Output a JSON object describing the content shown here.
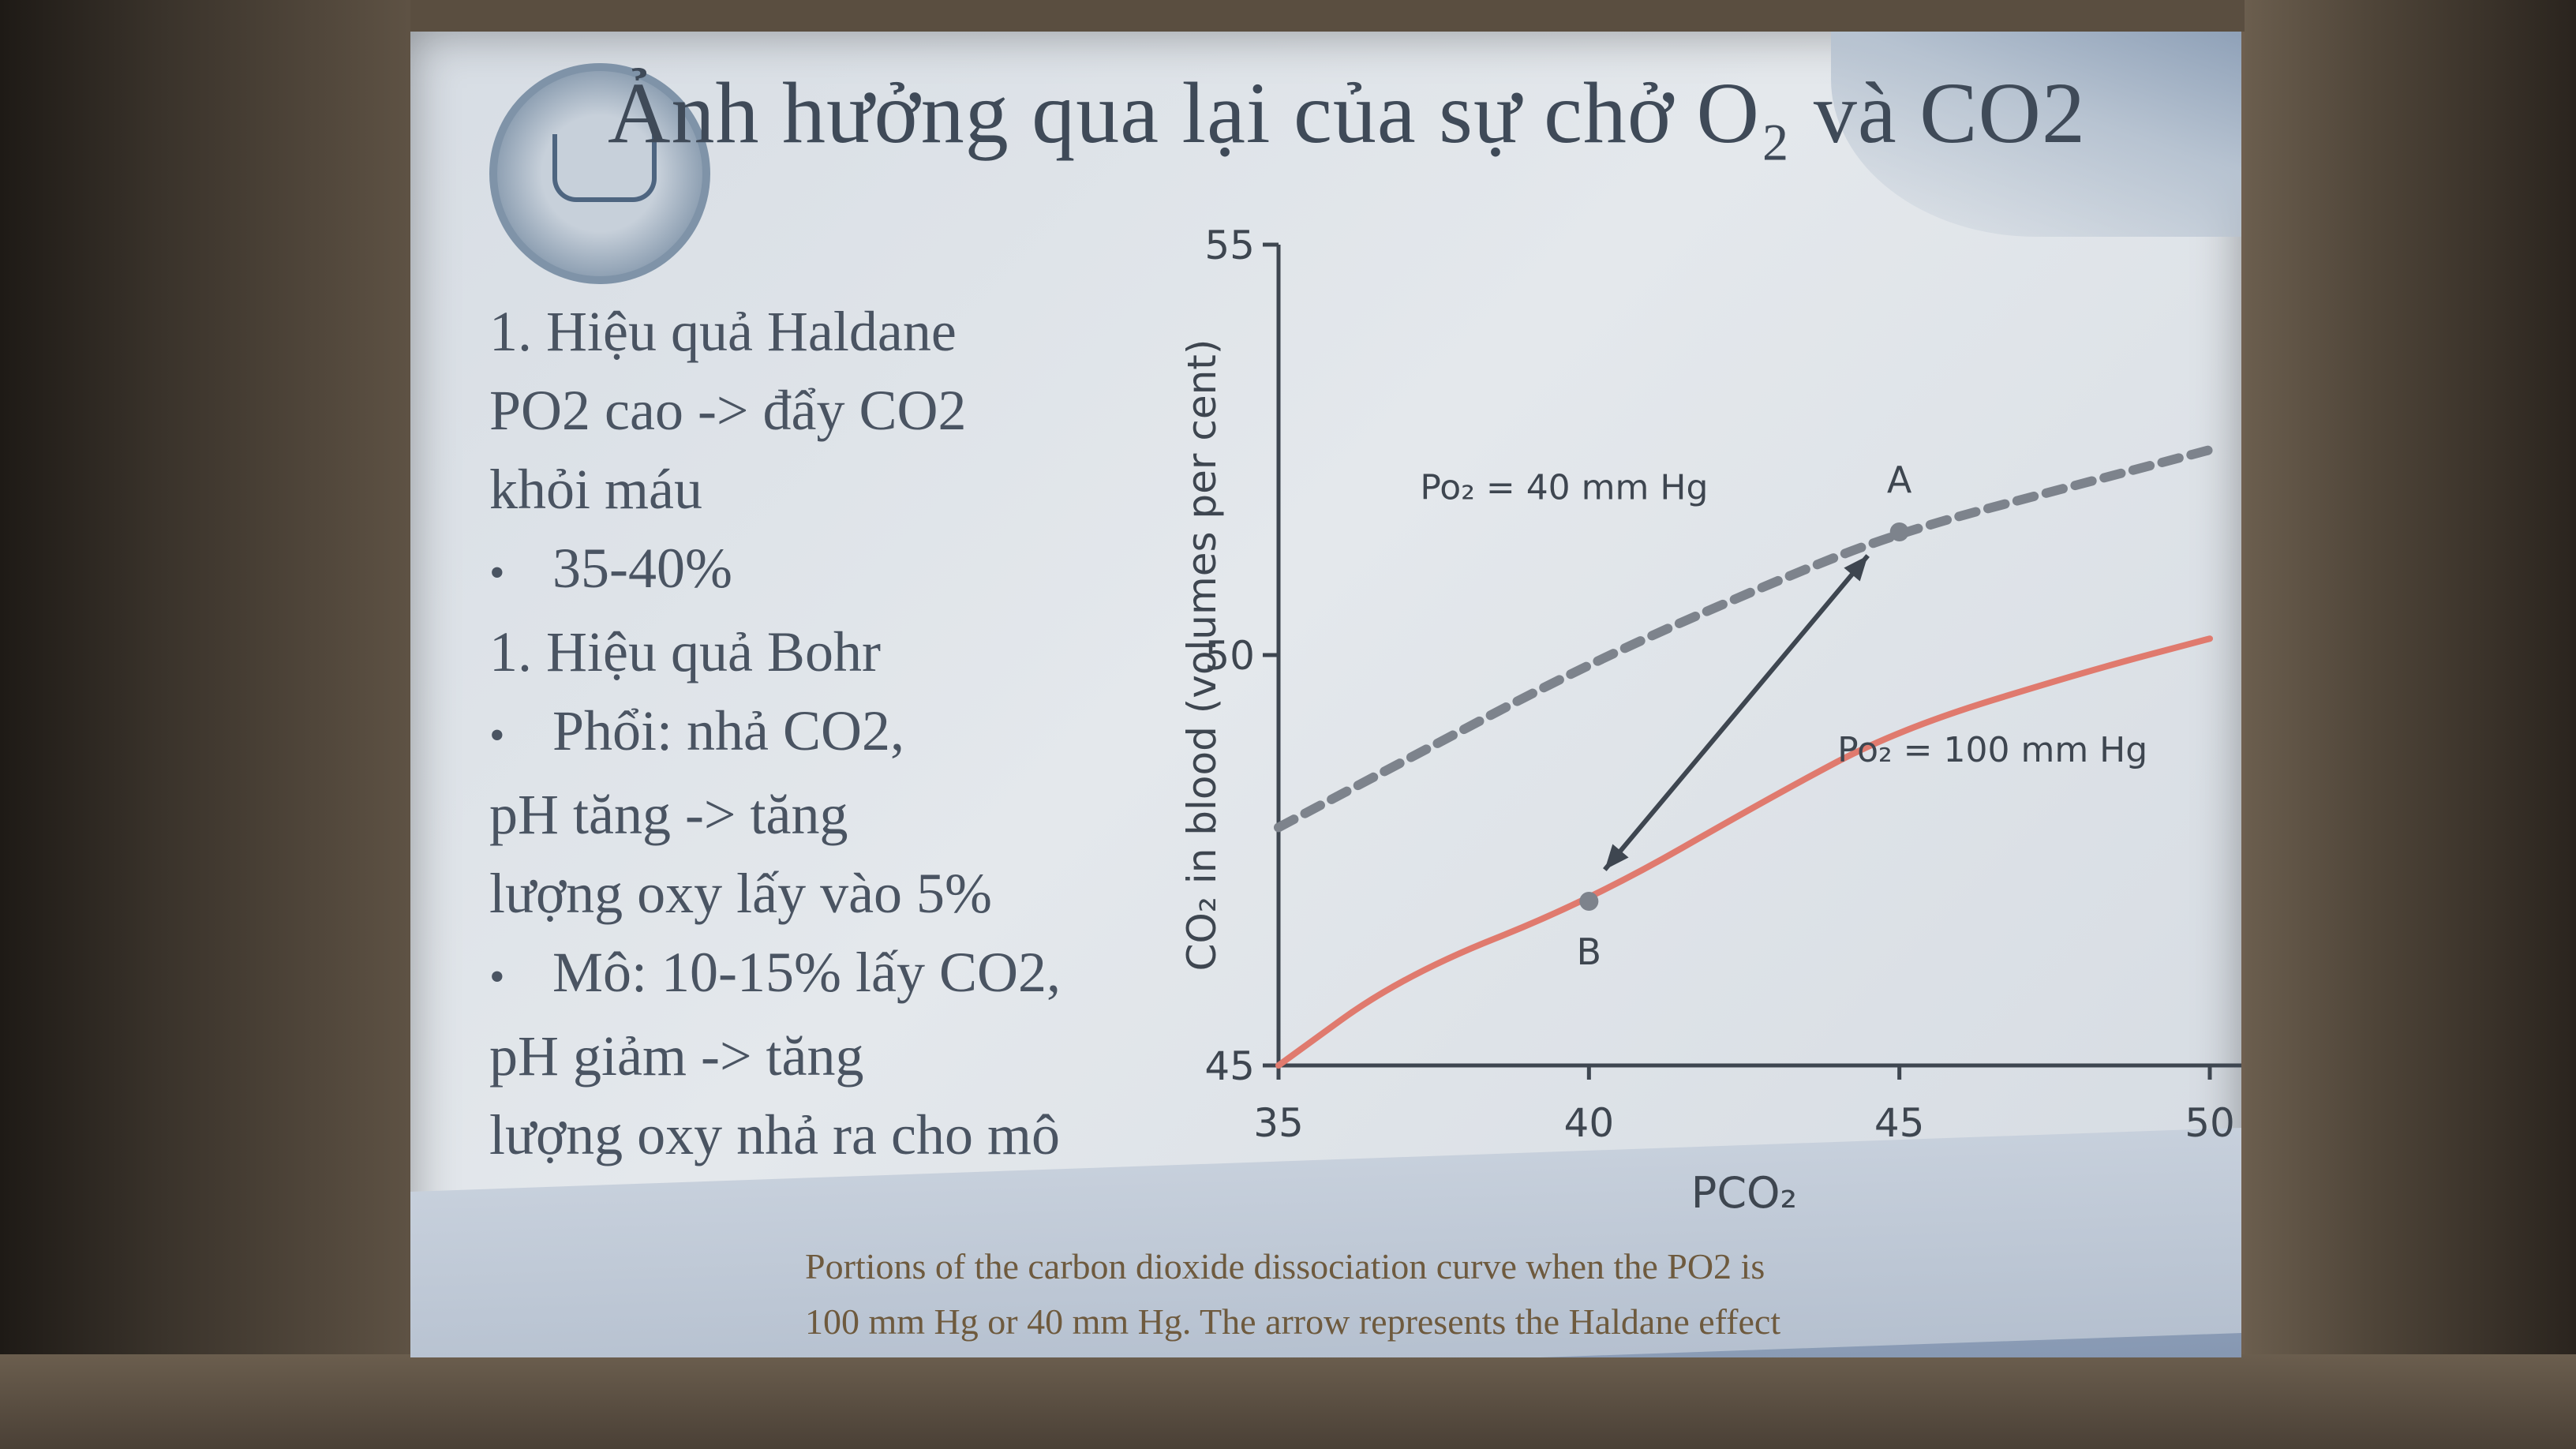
{
  "slide": {
    "title": "Ảnh hưởng qua lại của sự chở O₂ và CO2",
    "lines": [
      {
        "text": "1. Hiệu quả Haldane",
        "bullet": false
      },
      {
        "text": "PO2 cao -> đẩy CO2",
        "bullet": false
      },
      {
        "text": "khỏi máu",
        "bullet": false
      },
      {
        "text": "35-40%",
        "bullet": true
      },
      {
        "text": "1. Hiệu quả Bohr",
        "bullet": false
      },
      {
        "text": "Phổi: nhả CO2,",
        "bullet": true
      },
      {
        "text": "pH tăng -> tăng",
        "bullet": false
      },
      {
        "text": "lượng oxy lấy vào 5%",
        "bullet": false
      },
      {
        "text": "Mô: 10-15% lấy CO2,",
        "bullet": true
      },
      {
        "text": "pH giảm -> tăng",
        "bullet": false
      },
      {
        "text": "lượng oxy nhả ra cho mô",
        "bullet": false
      }
    ],
    "caption_1": "Portions of the carbon dioxide dissociation curve when the PO2 is",
    "caption_2": "100 mm Hg or 40 mm Hg. The arrow represents the Haldane effect"
  },
  "colors": {
    "curve_red": "#e07a6e",
    "curve_dashed": "#7d838c",
    "arrow": "#3e4650",
    "axis": "#3e4650",
    "text": "#4a5462"
  },
  "chart_data": {
    "type": "line",
    "xlabel": "PCO₂",
    "ylabel": "CO₂ in blood (volumes per cent)",
    "xlim": [
      35,
      50
    ],
    "ylim": [
      45,
      55
    ],
    "x_ticks": [
      "35",
      "40",
      "45",
      "50"
    ],
    "y_ticks": [
      "45",
      "50",
      "55"
    ],
    "series": [
      {
        "name": "Po₂ = 40 mm Hg",
        "style": "dashed",
        "x": [
          35,
          37,
          40,
          43,
          45,
          48,
          50
        ],
        "y": [
          47.9,
          48.7,
          49.9,
          50.9,
          51.5,
          52.1,
          52.5
        ]
      },
      {
        "name": "Po₂ = 100 mm Hg",
        "style": "solid",
        "x": [
          35,
          37,
          40,
          43,
          45,
          48,
          50
        ],
        "y": [
          45.0,
          46.1,
          47.0,
          48.3,
          49.1,
          49.8,
          50.2
        ]
      }
    ],
    "points": [
      {
        "label": "A",
        "x": 45,
        "y": 51.5
      },
      {
        "label": "B",
        "x": 40,
        "y": 47.0
      }
    ],
    "arrow": {
      "from": "A",
      "to": "B"
    }
  }
}
